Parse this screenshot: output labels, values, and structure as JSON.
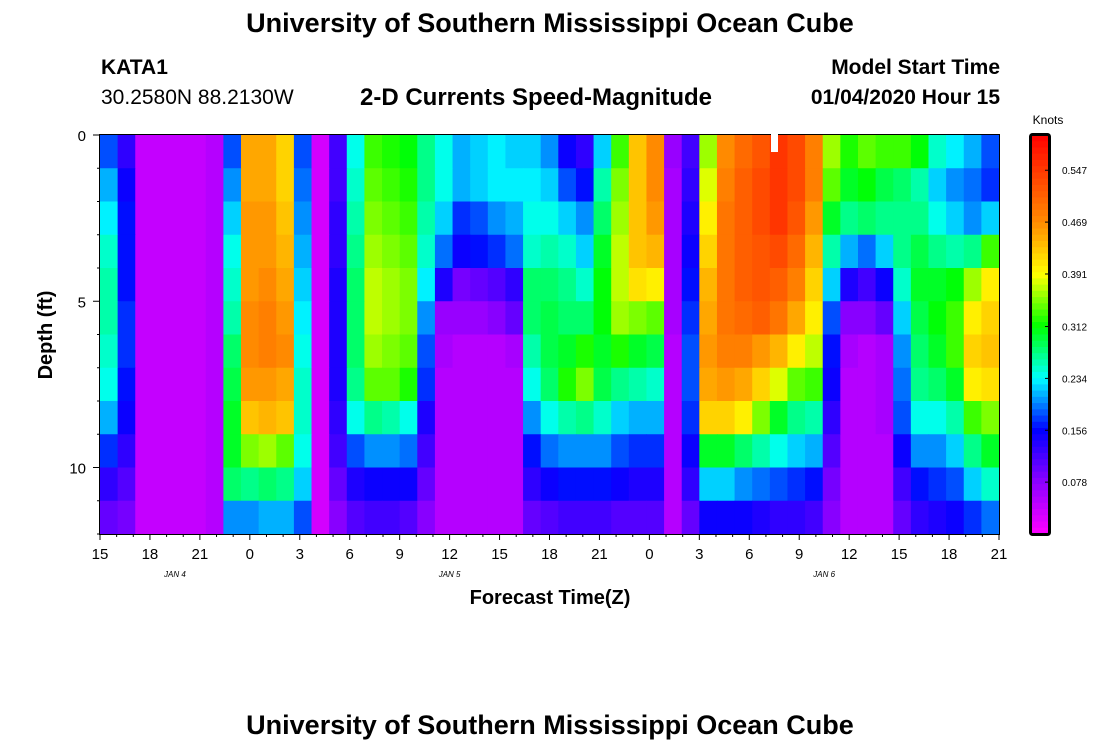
{
  "header": {
    "title_top": "University of Southern Mississippi Ocean Cube",
    "station": "KATA1",
    "coords": "30.2580N 88.2130W",
    "subtitle": "2-D Currents Speed-Magnitude",
    "model_start_label": "Model Start Time",
    "model_start_value": "01/04/2020 Hour 15",
    "title_bottom": "University of Southern Mississippi Ocean Cube"
  },
  "chart_data": {
    "type": "heatmap",
    "title": "2-D Currents Speed-Magnitude",
    "xlabel": "Forecast Time(Z)",
    "ylabel": "Depth (ft)",
    "x_range_hours": [
      0,
      54
    ],
    "ylim": [
      0,
      12
    ],
    "x_ticks": [
      {
        "h": 0,
        "label": "15"
      },
      {
        "h": 3,
        "label": "18"
      },
      {
        "h": 6,
        "label": "21"
      },
      {
        "h": 9,
        "label": "0"
      },
      {
        "h": 12,
        "label": "3"
      },
      {
        "h": 15,
        "label": "6"
      },
      {
        "h": 18,
        "label": "9"
      },
      {
        "h": 21,
        "label": "12"
      },
      {
        "h": 24,
        "label": "15"
      },
      {
        "h": 27,
        "label": "18"
      },
      {
        "h": 30,
        "label": "21"
      },
      {
        "h": 33,
        "label": "0"
      },
      {
        "h": 36,
        "label": "3"
      },
      {
        "h": 39,
        "label": "6"
      },
      {
        "h": 42,
        "label": "9"
      },
      {
        "h": 45,
        "label": "12"
      },
      {
        "h": 48,
        "label": "15"
      },
      {
        "h": 51,
        "label": "18"
      },
      {
        "h": 54,
        "label": "21"
      }
    ],
    "y_ticks": [
      {
        "d": 0,
        "label": "0"
      },
      {
        "d": 5,
        "label": "5"
      },
      {
        "d": 10,
        "label": "10"
      }
    ],
    "date_labels": [
      {
        "h": 4.5,
        "label": "JAN 4"
      },
      {
        "h": 21,
        "label": "JAN 5"
      },
      {
        "h": 43.5,
        "label": "JAN 6"
      }
    ],
    "colorbar": {
      "unit": "Knots",
      "min": 0,
      "max": 0.6,
      "tick_values": [
        0.078,
        0.156,
        0.234,
        0.312,
        0.391,
        0.469,
        0.547
      ],
      "tick_labels": [
        "0.078",
        "0.156",
        "0.234",
        "0.312",
        "0.391",
        "0.469",
        "0.547"
      ]
    },
    "depth_bins_ft": [
      0.5,
      1.5,
      2.5,
      3.5,
      4.5,
      5.5,
      6.5,
      7.5,
      8.5,
      9.5,
      10.5,
      11.5
    ],
    "speed_knots_rows": [
      [
        0.18,
        0.13,
        0.04,
        0.04,
        0.04,
        0.04,
        0.05,
        0.18,
        0.45,
        0.45,
        0.42,
        0.18,
        0.03,
        0.12,
        0.24,
        0.33,
        0.32,
        0.31,
        0.27,
        0.24,
        0.21,
        0.22,
        0.23,
        0.22,
        0.22,
        0.2,
        0.15,
        0.13,
        0.22,
        0.33,
        0.43,
        0.47,
        0.07,
        0.12,
        0.36,
        0.47,
        0.5,
        0.52,
        0.55,
        0.53,
        0.48,
        0.36,
        0.32,
        0.34,
        0.33,
        0.33,
        0.31,
        0.25,
        0.23,
        0.21,
        0.18
      ],
      [
        0.21,
        0.15,
        0.04,
        0.04,
        0.04,
        0.04,
        0.05,
        0.2,
        0.45,
        0.45,
        0.42,
        0.19,
        0.03,
        0.12,
        0.25,
        0.34,
        0.33,
        0.32,
        0.27,
        0.24,
        0.21,
        0.22,
        0.23,
        0.23,
        0.23,
        0.22,
        0.18,
        0.16,
        0.26,
        0.35,
        0.43,
        0.47,
        0.06,
        0.13,
        0.38,
        0.48,
        0.51,
        0.53,
        0.55,
        0.53,
        0.48,
        0.34,
        0.3,
        0.31,
        0.29,
        0.28,
        0.26,
        0.22,
        0.2,
        0.19,
        0.17
      ],
      [
        0.23,
        0.16,
        0.04,
        0.04,
        0.04,
        0.04,
        0.05,
        0.22,
        0.46,
        0.46,
        0.43,
        0.2,
        0.03,
        0.13,
        0.26,
        0.35,
        0.34,
        0.33,
        0.26,
        0.22,
        0.17,
        0.18,
        0.2,
        0.21,
        0.24,
        0.24,
        0.22,
        0.2,
        0.28,
        0.36,
        0.43,
        0.46,
        0.06,
        0.14,
        0.4,
        0.49,
        0.51,
        0.53,
        0.55,
        0.52,
        0.46,
        0.3,
        0.27,
        0.28,
        0.27,
        0.27,
        0.27,
        0.24,
        0.22,
        0.2,
        0.22
      ],
      [
        0.25,
        0.16,
        0.04,
        0.04,
        0.04,
        0.04,
        0.05,
        0.24,
        0.46,
        0.46,
        0.44,
        0.21,
        0.03,
        0.13,
        0.27,
        0.36,
        0.35,
        0.34,
        0.25,
        0.19,
        0.15,
        0.16,
        0.17,
        0.19,
        0.25,
        0.26,
        0.25,
        0.22,
        0.3,
        0.37,
        0.43,
        0.44,
        0.06,
        0.15,
        0.42,
        0.49,
        0.51,
        0.52,
        0.53,
        0.5,
        0.44,
        0.26,
        0.21,
        0.19,
        0.22,
        0.27,
        0.29,
        0.27,
        0.26,
        0.27,
        0.33
      ],
      [
        0.26,
        0.16,
        0.04,
        0.04,
        0.04,
        0.04,
        0.05,
        0.25,
        0.46,
        0.47,
        0.45,
        0.22,
        0.03,
        0.14,
        0.28,
        0.37,
        0.36,
        0.35,
        0.23,
        0.14,
        0.09,
        0.1,
        0.11,
        0.13,
        0.28,
        0.28,
        0.27,
        0.25,
        0.31,
        0.37,
        0.41,
        0.4,
        0.06,
        0.16,
        0.44,
        0.49,
        0.51,
        0.52,
        0.51,
        0.48,
        0.42,
        0.22,
        0.14,
        0.12,
        0.15,
        0.25,
        0.3,
        0.3,
        0.31,
        0.36,
        0.4
      ],
      [
        0.26,
        0.17,
        0.04,
        0.04,
        0.04,
        0.04,
        0.05,
        0.26,
        0.47,
        0.48,
        0.46,
        0.23,
        0.03,
        0.14,
        0.28,
        0.37,
        0.36,
        0.35,
        0.2,
        0.07,
        0.07,
        0.07,
        0.08,
        0.1,
        0.28,
        0.29,
        0.28,
        0.28,
        0.31,
        0.36,
        0.35,
        0.34,
        0.06,
        0.17,
        0.45,
        0.49,
        0.5,
        0.51,
        0.49,
        0.45,
        0.4,
        0.18,
        0.08,
        0.08,
        0.1,
        0.22,
        0.29,
        0.31,
        0.33,
        0.4,
        0.42
      ],
      [
        0.25,
        0.17,
        0.04,
        0.04,
        0.04,
        0.04,
        0.05,
        0.28,
        0.47,
        0.48,
        0.47,
        0.24,
        0.03,
        0.14,
        0.28,
        0.36,
        0.35,
        0.34,
        0.18,
        0.06,
        0.05,
        0.05,
        0.05,
        0.06,
        0.26,
        0.29,
        0.3,
        0.32,
        0.3,
        0.32,
        0.3,
        0.29,
        0.05,
        0.18,
        0.46,
        0.48,
        0.48,
        0.46,
        0.44,
        0.4,
        0.37,
        0.16,
        0.06,
        0.05,
        0.06,
        0.2,
        0.28,
        0.3,
        0.33,
        0.42,
        0.43
      ],
      [
        0.24,
        0.16,
        0.04,
        0.04,
        0.04,
        0.04,
        0.05,
        0.29,
        0.46,
        0.46,
        0.45,
        0.25,
        0.03,
        0.14,
        0.27,
        0.34,
        0.34,
        0.32,
        0.17,
        0.05,
        0.05,
        0.05,
        0.05,
        0.05,
        0.24,
        0.28,
        0.32,
        0.35,
        0.29,
        0.27,
        0.26,
        0.25,
        0.05,
        0.18,
        0.45,
        0.46,
        0.45,
        0.42,
        0.38,
        0.34,
        0.33,
        0.15,
        0.05,
        0.05,
        0.06,
        0.19,
        0.27,
        0.28,
        0.3,
        0.4,
        0.41
      ],
      [
        0.21,
        0.15,
        0.04,
        0.04,
        0.04,
        0.04,
        0.05,
        0.3,
        0.43,
        0.44,
        0.43,
        0.25,
        0.03,
        0.13,
        0.24,
        0.27,
        0.26,
        0.24,
        0.14,
        0.05,
        0.05,
        0.05,
        0.05,
        0.05,
        0.2,
        0.24,
        0.26,
        0.27,
        0.25,
        0.22,
        0.21,
        0.21,
        0.05,
        0.17,
        0.42,
        0.42,
        0.4,
        0.35,
        0.3,
        0.27,
        0.26,
        0.13,
        0.05,
        0.05,
        0.06,
        0.18,
        0.24,
        0.24,
        0.26,
        0.33,
        0.35
      ],
      [
        0.17,
        0.13,
        0.04,
        0.04,
        0.04,
        0.04,
        0.05,
        0.3,
        0.35,
        0.36,
        0.34,
        0.24,
        0.03,
        0.12,
        0.18,
        0.2,
        0.2,
        0.19,
        0.12,
        0.05,
        0.05,
        0.05,
        0.05,
        0.05,
        0.16,
        0.19,
        0.2,
        0.2,
        0.2,
        0.18,
        0.17,
        0.17,
        0.05,
        0.15,
        0.3,
        0.3,
        0.28,
        0.26,
        0.24,
        0.22,
        0.21,
        0.11,
        0.05,
        0.05,
        0.05,
        0.15,
        0.2,
        0.2,
        0.22,
        0.27,
        0.3
      ],
      [
        0.13,
        0.11,
        0.04,
        0.04,
        0.04,
        0.04,
        0.05,
        0.28,
        0.27,
        0.28,
        0.27,
        0.22,
        0.03,
        0.1,
        0.14,
        0.15,
        0.15,
        0.15,
        0.1,
        0.05,
        0.05,
        0.05,
        0.05,
        0.05,
        0.13,
        0.15,
        0.16,
        0.16,
        0.16,
        0.15,
        0.14,
        0.14,
        0.05,
        0.13,
        0.22,
        0.22,
        0.2,
        0.19,
        0.18,
        0.17,
        0.16,
        0.09,
        0.05,
        0.05,
        0.05,
        0.12,
        0.16,
        0.17,
        0.18,
        0.22,
        0.25
      ],
      [
        0.1,
        0.09,
        0.04,
        0.04,
        0.04,
        0.04,
        0.05,
        0.2,
        0.2,
        0.21,
        0.21,
        0.18,
        0.03,
        0.08,
        0.11,
        0.12,
        0.12,
        0.11,
        0.08,
        0.05,
        0.05,
        0.05,
        0.05,
        0.05,
        0.1,
        0.11,
        0.12,
        0.12,
        0.12,
        0.11,
        0.11,
        0.11,
        0.05,
        0.1,
        0.15,
        0.15,
        0.15,
        0.14,
        0.13,
        0.13,
        0.12,
        0.08,
        0.05,
        0.05,
        0.05,
        0.1,
        0.13,
        0.14,
        0.15,
        0.17,
        0.19
      ]
    ]
  }
}
